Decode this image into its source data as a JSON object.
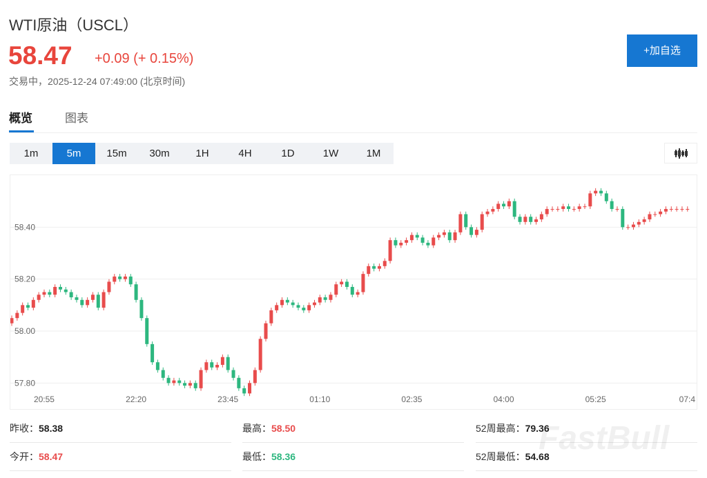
{
  "header": {
    "title": "WTI原油（USCL）",
    "price": "58.47",
    "change": "+0.09 (+ 0.15%)",
    "status": "交易中，2025-12-24 07:49:00 (北京时间)",
    "button": "+加自选"
  },
  "tabs": [
    "概览",
    "图表"
  ],
  "intervals": [
    "1m",
    "5m",
    "15m",
    "30m",
    "1H",
    "4H",
    "1D",
    "1W",
    "1M"
  ],
  "stats": [
    {
      "label": "昨收：",
      "value": "58.38",
      "color": "#222222"
    },
    {
      "label": "最高：",
      "value": "58.50",
      "color": "#e84c4c"
    },
    {
      "label": "52周最高：",
      "value": "79.36",
      "color": "#222222"
    },
    {
      "label": "今开：",
      "value": "58.47",
      "color": "#e84c4c"
    },
    {
      "label": "最低：",
      "value": "58.36",
      "color": "#2db77f"
    },
    {
      "label": "52周最低：",
      "value": "54.68",
      "color": "#222222"
    }
  ],
  "watermark": "FastBull",
  "chart_data": {
    "type": "candlestick",
    "up_color": "#e84c4c",
    "down_color": "#2db77f",
    "grid": true,
    "categories": [
      null,
      null,
      null,
      null,
      null,
      null,
      "20:55",
      null,
      null,
      null,
      null,
      null,
      null,
      null,
      null,
      null,
      null,
      null,
      null,
      null,
      null,
      null,
      null,
      "22:20",
      null,
      null,
      null,
      null,
      null,
      null,
      null,
      null,
      null,
      null,
      null,
      null,
      null,
      null,
      null,
      null,
      "23:45",
      null,
      null,
      null,
      null,
      null,
      null,
      null,
      null,
      null,
      null,
      null,
      null,
      null,
      null,
      null,
      null,
      "01:10",
      null,
      null,
      null,
      null,
      null,
      null,
      null,
      null,
      null,
      null,
      null,
      null,
      null,
      null,
      null,
      null,
      "02:35",
      null,
      null,
      null,
      null,
      null,
      null,
      null,
      null,
      null,
      null,
      null,
      null,
      null,
      null,
      null,
      null,
      "04:00",
      null,
      null,
      null,
      null,
      null,
      null,
      null,
      null,
      null,
      null,
      null,
      null,
      null,
      null,
      null,
      null,
      "05:25",
      null,
      null,
      null,
      null,
      null,
      null,
      null,
      null,
      null,
      null,
      null,
      null,
      null,
      null,
      null,
      null,
      "07:4"
    ],
    "open": [
      58.03,
      58.05,
      58.07,
      58.1,
      58.09,
      58.12,
      58.14,
      58.15,
      58.14,
      58.17,
      58.16,
      58.15,
      58.13,
      58.12,
      58.1,
      58.12,
      58.14,
      58.09,
      58.15,
      58.19,
      58.21,
      58.2,
      58.21,
      58.18,
      58.12,
      58.05,
      57.95,
      57.88,
      57.85,
      57.82,
      57.8,
      57.81,
      57.8,
      57.79,
      57.8,
      57.78,
      57.85,
      57.88,
      57.86,
      57.87,
      57.9,
      57.85,
      57.82,
      57.78,
      57.76,
      57.8,
      57.85,
      57.97,
      58.03,
      58.08,
      58.1,
      58.12,
      58.11,
      58.1,
      58.09,
      58.08,
      58.1,
      58.11,
      58.13,
      58.12,
      58.14,
      58.18,
      58.19,
      58.17,
      58.14,
      58.15,
      58.22,
      58.25,
      58.24,
      58.25,
      58.27,
      58.35,
      58.33,
      58.34,
      58.35,
      58.37,
      58.36,
      58.34,
      58.33,
      58.36,
      58.37,
      58.38,
      58.35,
      58.38,
      58.45,
      58.4,
      58.37,
      58.39,
      58.45,
      58.46,
      58.47,
      58.49,
      58.48,
      58.5,
      58.44,
      58.42,
      58.44,
      58.42,
      58.43,
      58.45,
      58.47,
      58.47,
      58.47,
      58.48,
      58.47,
      58.47,
      58.48,
      58.48,
      58.53,
      58.54,
      58.53,
      58.5,
      58.47,
      58.47,
      58.4,
      58.4,
      58.41,
      58.42,
      58.43,
      58.45,
      58.45,
      58.46,
      58.47,
      58.47,
      58.47,
      58.47
    ],
    "high": [
      58.06,
      58.08,
      58.11,
      58.11,
      58.13,
      58.15,
      58.16,
      58.16,
      58.18,
      58.18,
      58.17,
      58.16,
      58.14,
      58.13,
      58.13,
      58.15,
      58.15,
      58.16,
      58.2,
      58.22,
      58.22,
      58.22,
      58.22,
      58.19,
      58.13,
      58.06,
      57.96,
      57.89,
      57.86,
      57.83,
      57.82,
      57.82,
      57.81,
      57.81,
      57.81,
      57.86,
      57.89,
      57.89,
      57.88,
      57.91,
      57.91,
      57.86,
      57.83,
      57.79,
      57.81,
      57.86,
      57.98,
      58.04,
      58.09,
      58.11,
      58.13,
      58.13,
      58.12,
      58.11,
      58.1,
      58.11,
      58.12,
      58.14,
      58.14,
      58.15,
      58.19,
      58.2,
      58.2,
      58.18,
      58.16,
      58.23,
      58.26,
      58.26,
      58.26,
      58.28,
      58.36,
      58.36,
      58.35,
      58.36,
      58.38,
      58.38,
      58.37,
      58.35,
      58.37,
      58.38,
      58.39,
      58.39,
      58.39,
      58.46,
      58.46,
      58.41,
      58.4,
      58.46,
      58.47,
      58.48,
      58.5,
      58.5,
      58.51,
      58.51,
      58.45,
      58.45,
      58.45,
      58.44,
      58.46,
      58.48,
      58.48,
      58.48,
      58.49,
      58.49,
      58.48,
      58.49,
      58.49,
      58.54,
      58.55,
      58.55,
      58.54,
      58.51,
      58.48,
      58.48,
      58.41,
      58.42,
      58.43,
      58.44,
      58.46,
      58.46,
      58.47,
      58.48,
      58.48,
      58.48,
      58.48,
      58.48
    ],
    "low": [
      58.02,
      58.04,
      58.06,
      58.08,
      58.08,
      58.11,
      58.13,
      58.13,
      58.13,
      58.15,
      58.14,
      58.12,
      58.11,
      58.09,
      58.09,
      58.11,
      58.08,
      58.08,
      58.14,
      58.18,
      58.19,
      58.19,
      58.17,
      58.11,
      58.04,
      57.94,
      57.87,
      57.84,
      57.81,
      57.79,
      57.79,
      57.79,
      57.78,
      57.78,
      57.77,
      57.77,
      57.84,
      57.85,
      57.85,
      57.86,
      57.84,
      57.81,
      57.77,
      57.75,
      57.75,
      57.79,
      57.84,
      57.96,
      58.02,
      58.07,
      58.09,
      58.1,
      58.09,
      58.08,
      58.07,
      58.07,
      58.09,
      58.1,
      58.11,
      58.11,
      58.13,
      58.17,
      58.16,
      58.13,
      58.13,
      58.14,
      58.21,
      58.23,
      58.23,
      58.24,
      58.26,
      58.32,
      58.32,
      58.33,
      58.34,
      58.35,
      58.33,
      58.32,
      58.32,
      58.35,
      58.36,
      58.34,
      58.34,
      58.37,
      58.39,
      58.36,
      58.36,
      58.38,
      58.44,
      58.45,
      58.46,
      58.47,
      58.47,
      58.43,
      58.41,
      58.41,
      58.41,
      58.41,
      58.42,
      58.44,
      58.46,
      58.46,
      58.46,
      58.46,
      58.46,
      58.46,
      58.47,
      58.47,
      58.52,
      58.52,
      58.49,
      58.46,
      58.46,
      58.39,
      58.39,
      58.39,
      58.4,
      58.41,
      58.42,
      58.44,
      58.44,
      58.45,
      58.46,
      58.46,
      58.46,
      58.46
    ],
    "close": [
      58.05,
      58.07,
      58.1,
      58.09,
      58.12,
      58.14,
      58.15,
      58.14,
      58.17,
      58.16,
      58.15,
      58.13,
      58.12,
      58.1,
      58.12,
      58.14,
      58.09,
      58.15,
      58.19,
      58.21,
      58.2,
      58.21,
      58.18,
      58.12,
      58.05,
      57.95,
      57.88,
      57.85,
      57.82,
      57.8,
      57.81,
      57.8,
      57.79,
      57.8,
      57.78,
      57.85,
      57.88,
      57.86,
      57.87,
      57.9,
      57.85,
      57.82,
      57.78,
      57.76,
      57.8,
      57.85,
      57.97,
      58.03,
      58.08,
      58.1,
      58.12,
      58.11,
      58.1,
      58.09,
      58.08,
      58.1,
      58.11,
      58.13,
      58.12,
      58.14,
      58.18,
      58.19,
      58.17,
      58.14,
      58.15,
      58.22,
      58.25,
      58.24,
      58.25,
      58.27,
      58.35,
      58.33,
      58.34,
      58.35,
      58.37,
      58.36,
      58.34,
      58.33,
      58.36,
      58.37,
      58.38,
      58.35,
      58.38,
      58.45,
      58.4,
      58.37,
      58.39,
      58.45,
      58.46,
      58.47,
      58.49,
      58.48,
      58.5,
      58.44,
      58.42,
      58.44,
      58.42,
      58.43,
      58.45,
      58.47,
      58.47,
      58.47,
      58.48,
      58.47,
      58.47,
      58.48,
      58.48,
      58.53,
      58.54,
      58.53,
      58.5,
      58.47,
      58.47,
      58.4,
      58.4,
      58.41,
      58.42,
      58.43,
      58.45,
      58.45,
      58.46,
      58.47,
      58.47,
      58.47,
      58.47,
      58.47
    ],
    "ylim": [
      57.7,
      58.6
    ],
    "yticks": [
      {
        "value": 57.8,
        "label": "57.80"
      },
      {
        "value": 58,
        "label": "58.00"
      },
      {
        "value": 58.2,
        "label": "58.20"
      },
      {
        "value": 58.4,
        "label": "58.40"
      }
    ]
  }
}
